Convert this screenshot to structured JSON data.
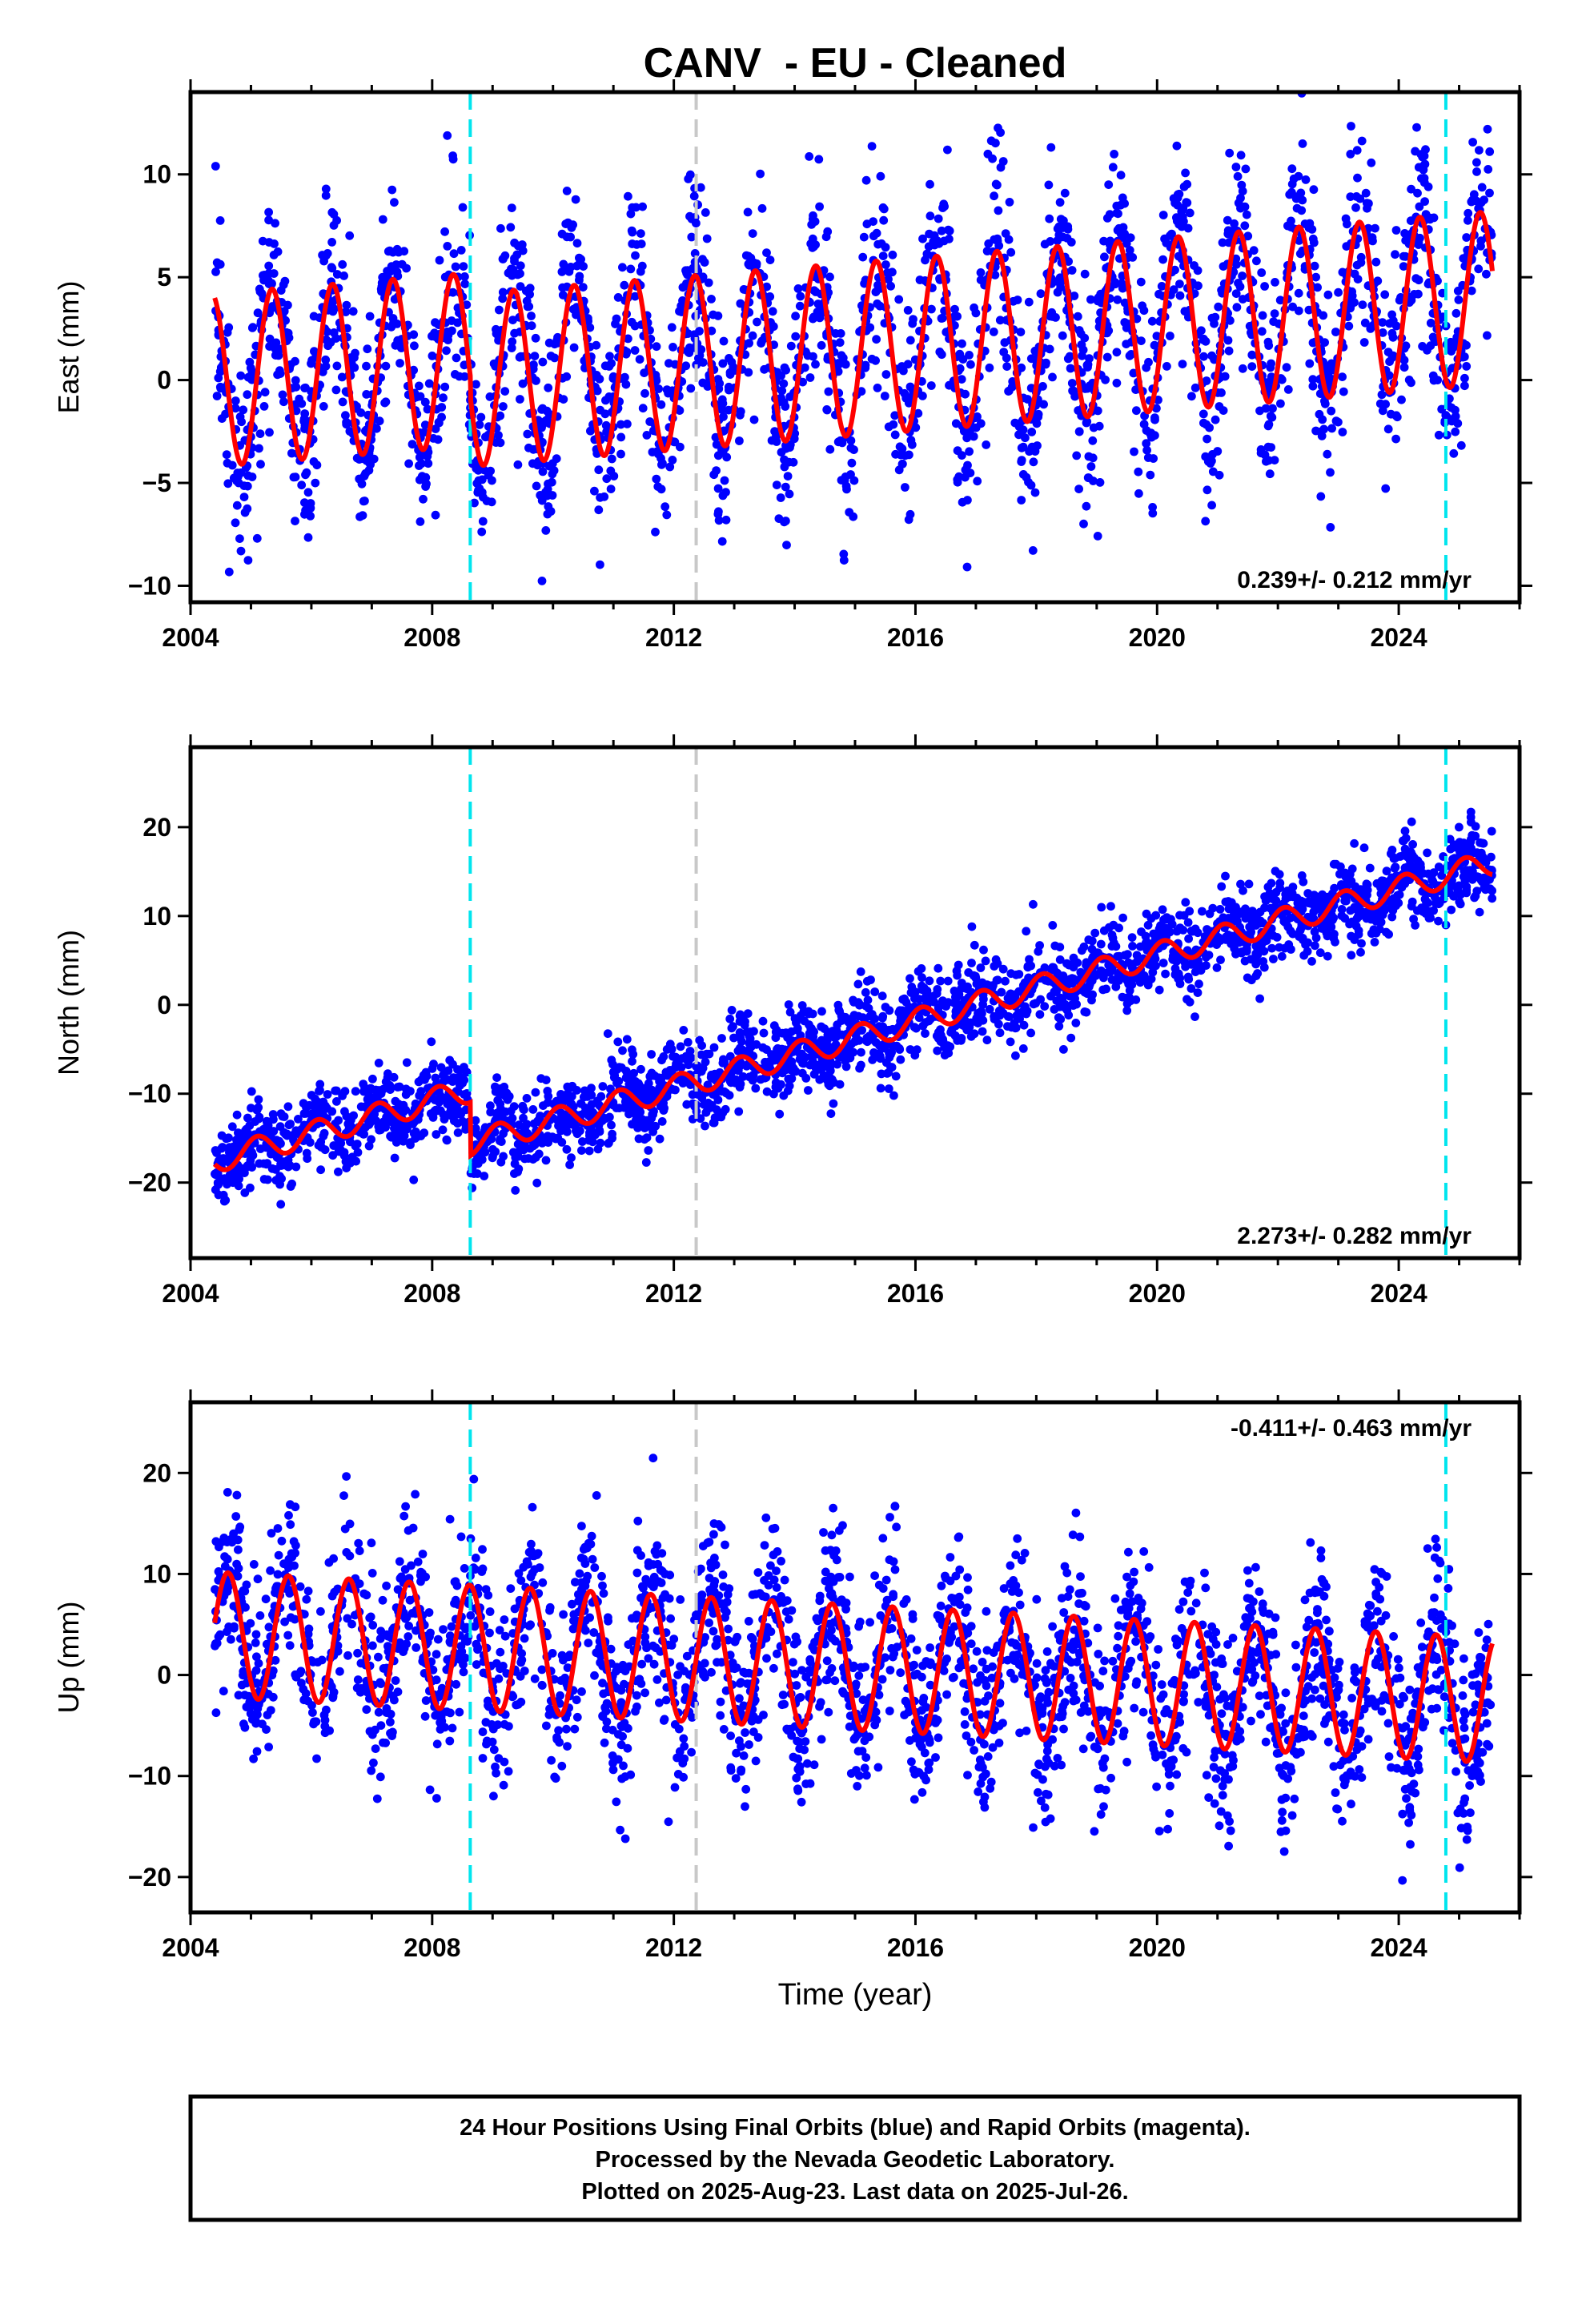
{
  "title": "CANV  - EU - Cleaned",
  "colors": {
    "data_points": "#0000ff",
    "model_line": "#ff0000",
    "equipment_change": "#00e5ee",
    "earthquake": "#c8c8c8",
    "axes": "#000000"
  },
  "chart_data": [
    {
      "type": "scatter",
      "component": "east",
      "ylabel": "East (mm)",
      "xlabel": "",
      "xlim": [
        2004.0,
        2026.0
      ],
      "ylim": [
        -10.8,
        14.0
      ],
      "xticks": [
        2004,
        2008,
        2012,
        2016,
        2020,
        2024
      ],
      "yticks": [
        -10,
        -5,
        0,
        5,
        10
      ],
      "grid": false,
      "rate_label": "0.239+/- 0.212 mm/yr",
      "rate_position": "bottom-right",
      "vertical_lines": [
        {
          "x": 2008.63,
          "kind": "equipment_change"
        },
        {
          "x": 2012.37,
          "kind": "earthquake"
        },
        {
          "x": 2024.78,
          "kind": "equipment_change"
        }
      ],
      "model": {
        "start": 2004.4,
        "end": 2025.55,
        "trend": [
          2004.4,
          0.0,
          2025.55,
          5.0
        ],
        "amplitude": 4.2,
        "phase": 0.35,
        "offsets": [
          {
            "x": 2008.63,
            "dy": -1.0
          }
        ]
      },
      "scatter_noise": 2.4
    },
    {
      "type": "scatter",
      "component": "north",
      "ylabel": "North (mm)",
      "xlabel": "",
      "xlim": [
        2004.0,
        2026.0
      ],
      "ylim": [
        -28.5,
        29.0
      ],
      "xticks": [
        2004,
        2008,
        2012,
        2016,
        2020,
        2024
      ],
      "yticks": [
        -20,
        -10,
        0,
        10,
        20
      ],
      "grid": false,
      "rate_label": "2.273+/- 0.282 mm/yr",
      "rate_position": "bottom-right",
      "vertical_lines": [
        {
          "x": 2008.63,
          "kind": "equipment_change"
        },
        {
          "x": 2012.37,
          "kind": "earthquake"
        },
        {
          "x": 2024.78,
          "kind": "equipment_change"
        }
      ],
      "model": {
        "start": 2004.4,
        "end": 2025.55,
        "trend": [
          2004.4,
          -17.5,
          2025.55,
          22.0
        ],
        "amplitude": 1.4,
        "phase": 0.1,
        "offsets": [
          {
            "x": 2008.63,
            "dy": -6.0
          }
        ]
      },
      "scatter_noise": 2.3
    },
    {
      "type": "scatter",
      "component": "up",
      "ylabel": "Up (mm)",
      "xlabel": "Time (year)",
      "xlim": [
        2004.0,
        2026.0
      ],
      "ylim": [
        -23.5,
        27.0
      ],
      "xticks": [
        2004,
        2008,
        2012,
        2016,
        2020,
        2024
      ],
      "yticks": [
        -20,
        -10,
        0,
        10,
        20
      ],
      "grid": false,
      "rate_label": "-0.411+/- 0.463 mm/yr",
      "rate_position": "top-right",
      "vertical_lines": [
        {
          "x": 2008.63,
          "kind": "equipment_change"
        },
        {
          "x": 2012.37,
          "kind": "earthquake"
        },
        {
          "x": 2024.78,
          "kind": "equipment_change"
        }
      ],
      "model": {
        "start": 2004.4,
        "end": 2025.55,
        "trend": [
          2004.4,
          4.0,
          2025.55,
          -2.5
        ],
        "amplitude": 6.2,
        "phase": 0.62,
        "offsets": []
      },
      "scatter_noise": 4.3
    }
  ],
  "footer": {
    "line1": "24 Hour Positions Using Final Orbits (blue) and Rapid Orbits (magenta).",
    "line2": "Processed by the Nevada Geodetic Laboratory.",
    "line3": "Plotted on 2025-Aug-23. Last data on 2025-Jul-26."
  }
}
